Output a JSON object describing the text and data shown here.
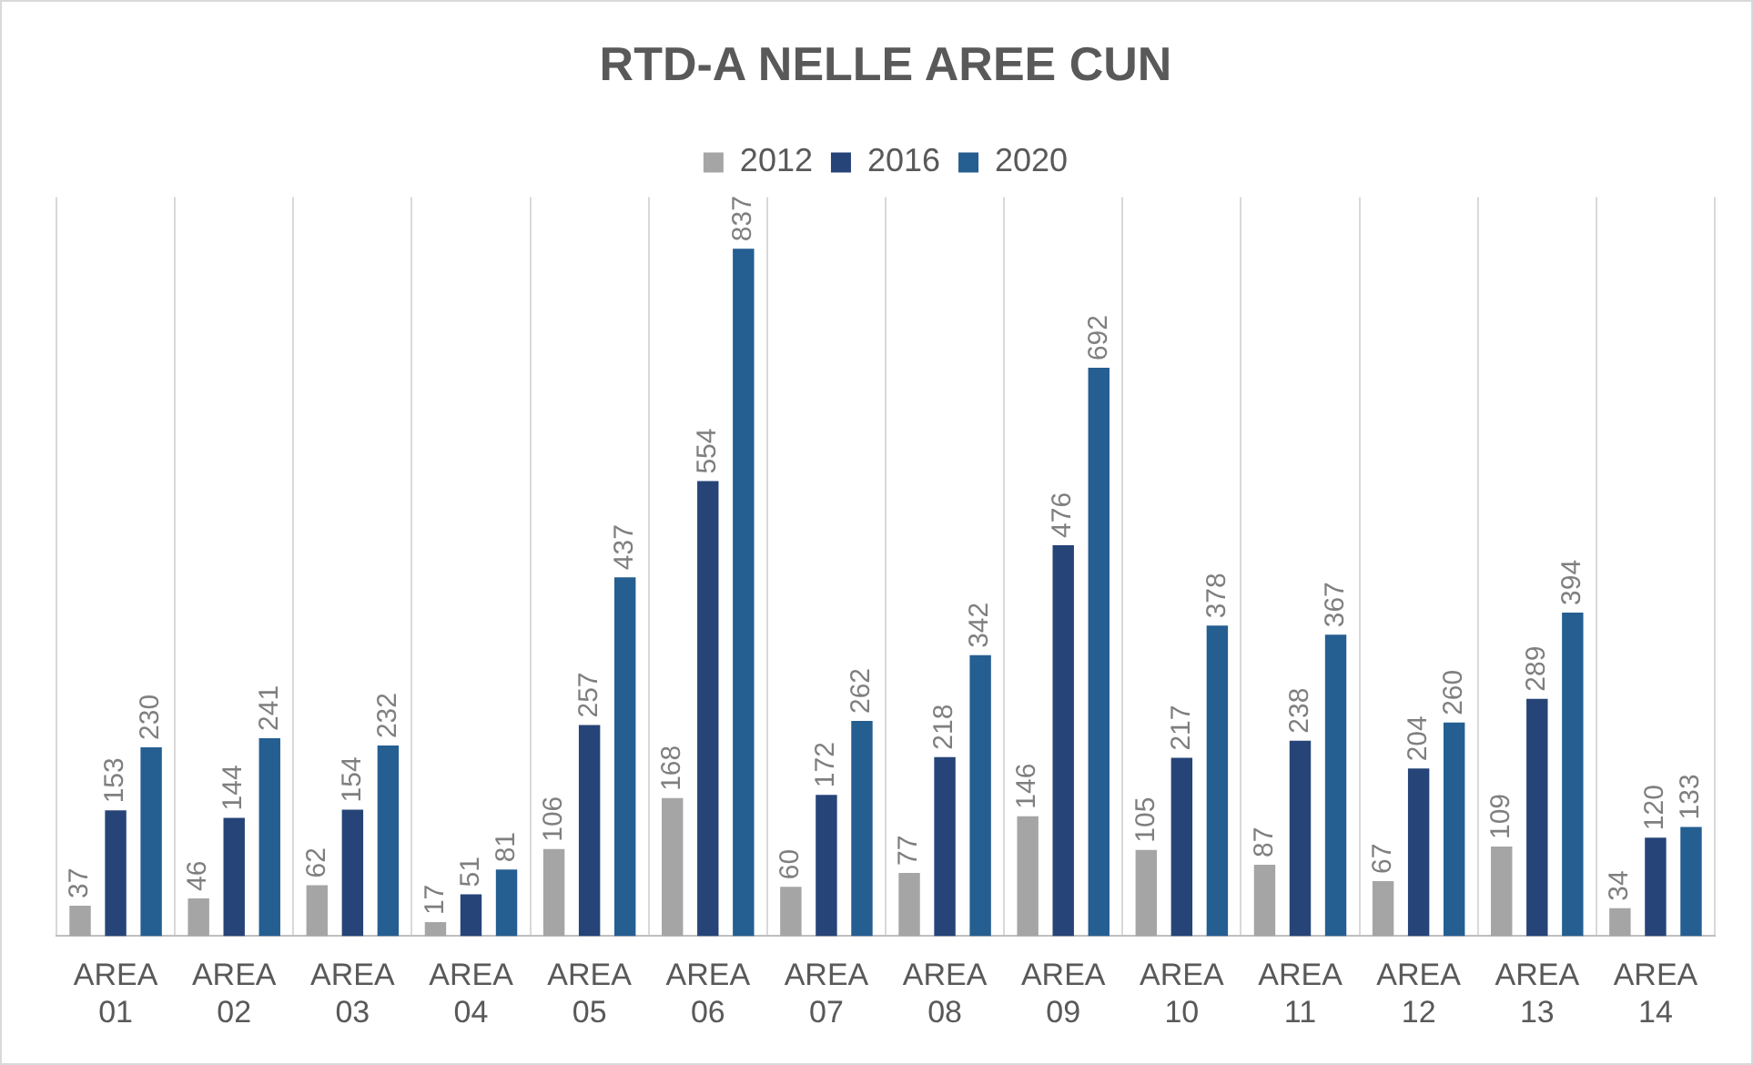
{
  "chart_data": {
    "type": "bar",
    "title": "RTD-A NELLE AREE CUN",
    "categories": [
      "AREA 01",
      "AREA 02",
      "AREA 03",
      "AREA 04",
      "AREA 05",
      "AREA 06",
      "AREA 07",
      "AREA 08",
      "AREA 09",
      "AREA 10",
      "AREA 11",
      "AREA 12",
      "AREA 13",
      "AREA 14"
    ],
    "series": [
      {
        "name": "2012",
        "color": "#a5a5a5",
        "values": [
          37,
          46,
          62,
          17,
          106,
          168,
          60,
          77,
          146,
          105,
          87,
          67,
          109,
          34
        ]
      },
      {
        "name": "2016",
        "color": "#264478",
        "values": [
          153,
          144,
          154,
          51,
          257,
          554,
          172,
          218,
          476,
          217,
          238,
          204,
          289,
          120
        ]
      },
      {
        "name": "2020",
        "color": "#255e91",
        "values": [
          230,
          241,
          232,
          81,
          437,
          837,
          262,
          342,
          692,
          378,
          367,
          260,
          394,
          133
        ]
      }
    ],
    "data_labels": true,
    "grid": "x",
    "legend": "top",
    "tick_labels": "x"
  }
}
